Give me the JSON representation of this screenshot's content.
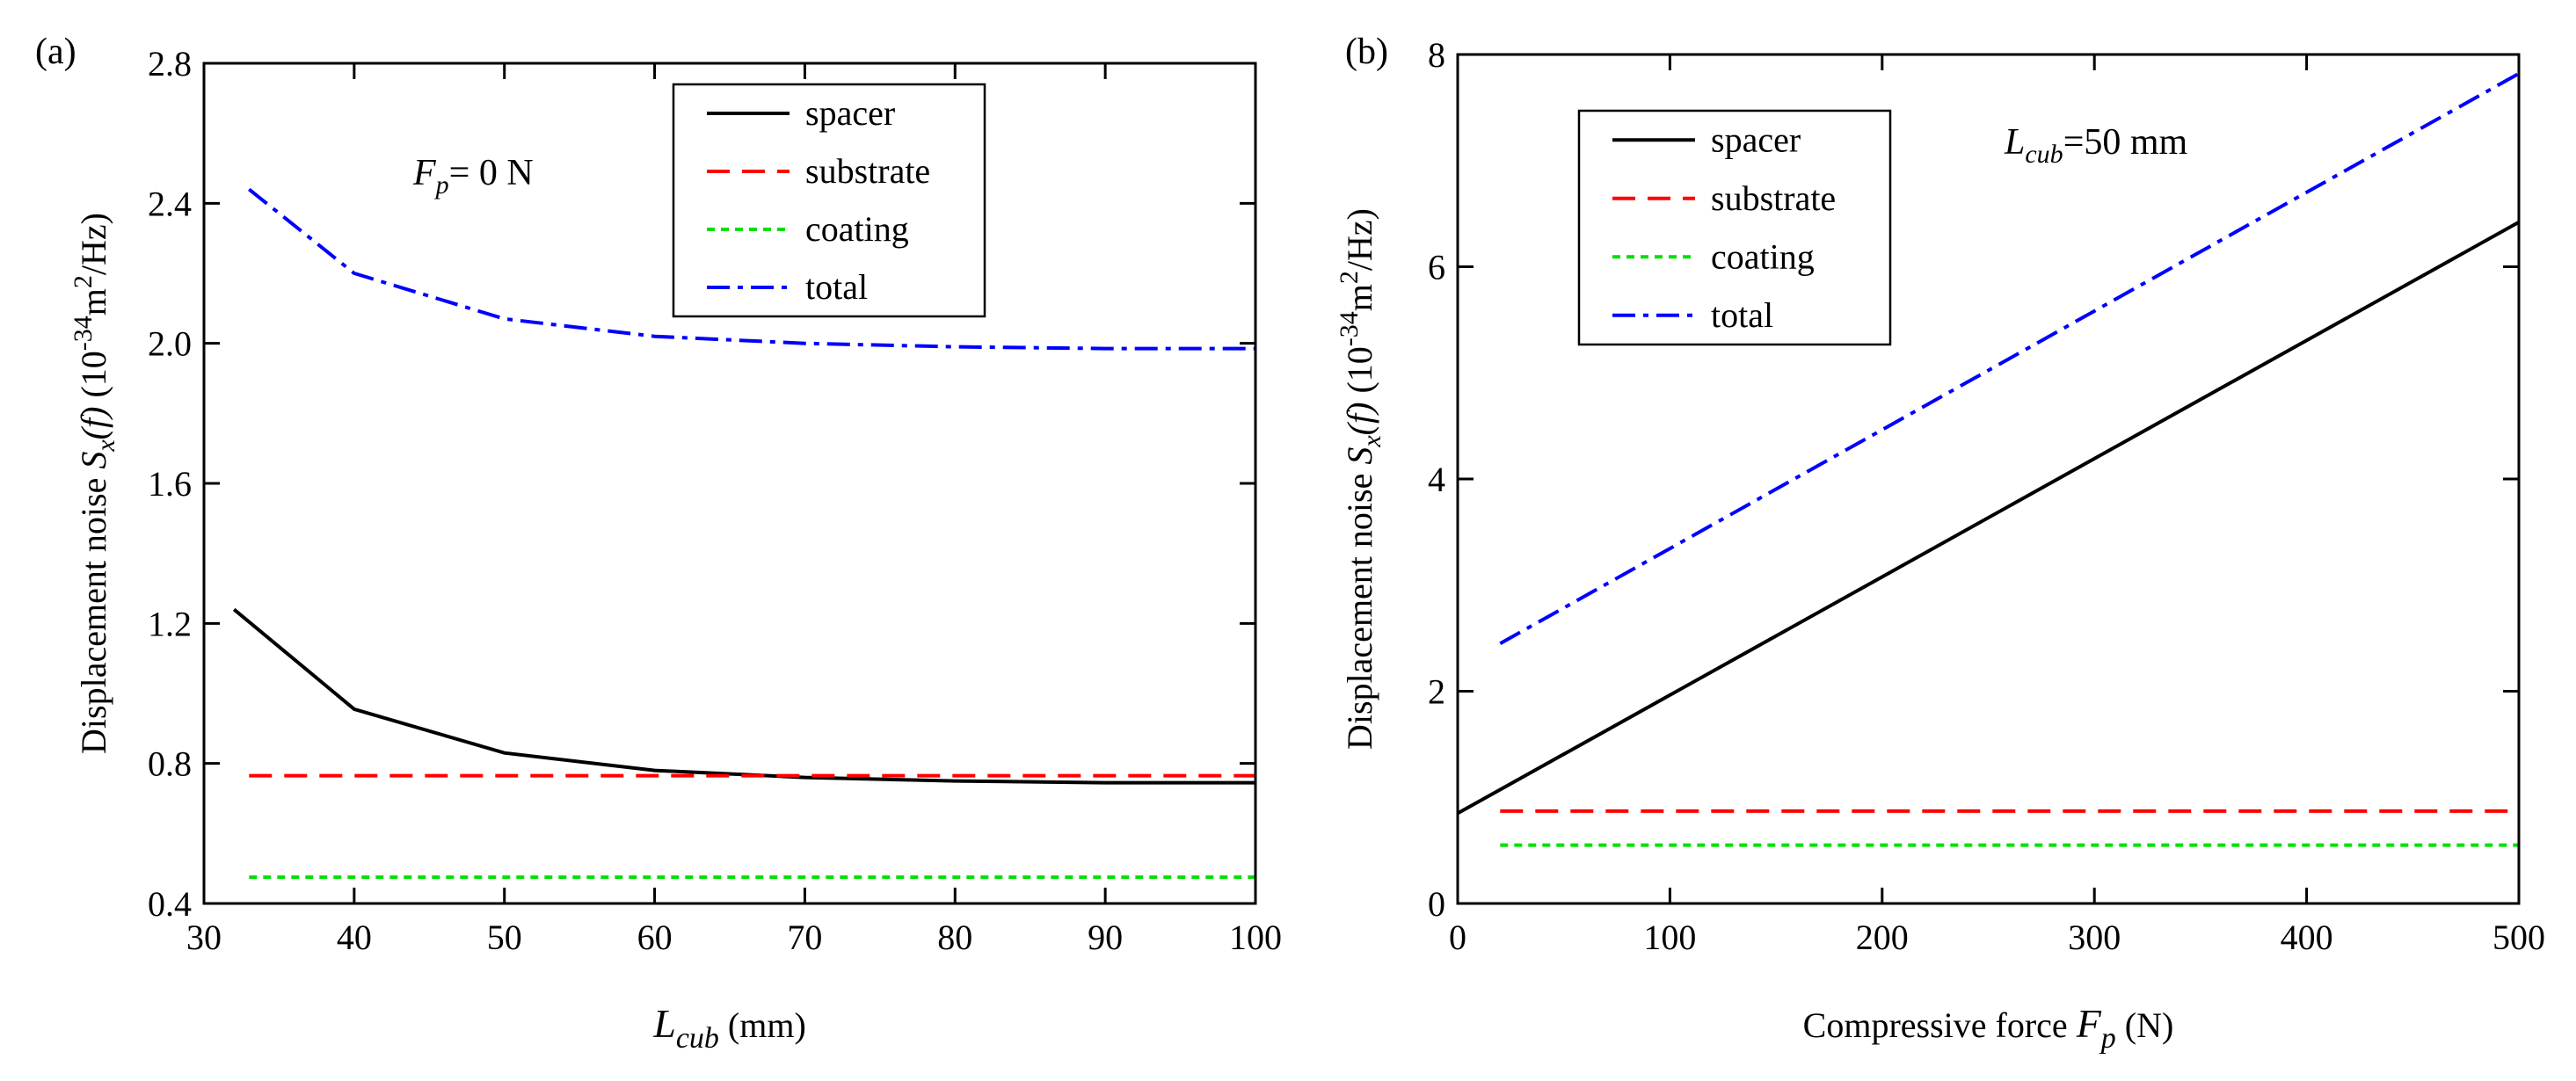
{
  "chart_data": [
    {
      "panel_label": "(a)",
      "type": "line",
      "annotation": {
        "main": "F",
        "sub": "p",
        "rest": "= 0 N"
      },
      "xlabel": {
        "main": "L",
        "sub": "cub",
        "rest": " (mm)"
      },
      "ylabel": {
        "prefix": "Displacement noise ",
        "S": "S",
        "Ssub": "x",
        "f": "(f)",
        "unit1": " (10",
        "exp1": "-34",
        "unit2": "m",
        "exp2": "2",
        "unit3": "/Hz)"
      },
      "xlim": [
        30,
        100
      ],
      "ylim": [
        0.4,
        2.8
      ],
      "xticks": [
        30,
        40,
        50,
        60,
        70,
        80,
        90,
        100
      ],
      "yticks": [
        0.4,
        0.8,
        1.2,
        1.6,
        2.0,
        2.4,
        2.8
      ],
      "ytick_labels": [
        "0.4",
        "0.8",
        "1.2",
        "1.6",
        "2.0",
        "2.4",
        "2.8"
      ],
      "legend": [
        "spacer",
        "substrate",
        "coating",
        "total"
      ],
      "series": [
        {
          "name": "spacer",
          "color": "#000000",
          "style": "solid",
          "x": [
            32,
            40,
            50,
            60,
            70,
            80,
            90,
            100
          ],
          "y": [
            1.24,
            0.955,
            0.83,
            0.78,
            0.76,
            0.75,
            0.745,
            0.745
          ]
        },
        {
          "name": "substrate",
          "color": "#ff0000",
          "style": "dash",
          "x": [
            33,
            100
          ],
          "y": [
            0.765,
            0.765
          ]
        },
        {
          "name": "coating",
          "color": "#00e000",
          "style": "dot",
          "x": [
            33,
            100
          ],
          "y": [
            0.475,
            0.475
          ]
        },
        {
          "name": "total",
          "color": "#0000ff",
          "style": "dashdot",
          "x": [
            33,
            40,
            50,
            60,
            70,
            80,
            90,
            100
          ],
          "y": [
            2.44,
            2.2,
            2.07,
            2.02,
            2.0,
            1.99,
            1.985,
            1.985
          ]
        }
      ]
    },
    {
      "panel_label": "(b)",
      "type": "line",
      "annotation": {
        "main": "L",
        "sub": "cub",
        "rest": "=50 mm"
      },
      "xlabel": {
        "prefix": "Compressive force  ",
        "main": "F",
        "sub": "p",
        "rest": " (N)"
      },
      "ylabel": {
        "prefix": "Displacement noise ",
        "S": "S",
        "Ssub": "x",
        "f": "(f)",
        "unit1": " (10",
        "exp1": "-34",
        "unit2": "m",
        "exp2": "2",
        "unit3": "/Hz)"
      },
      "xlim": [
        0,
        500
      ],
      "ylim": [
        0,
        8
      ],
      "xticks": [
        0,
        100,
        200,
        300,
        400,
        500
      ],
      "yticks": [
        0,
        2,
        4,
        6,
        8
      ],
      "ytick_labels": [
        "0",
        "2",
        "4",
        "6",
        "8"
      ],
      "legend": [
        "spacer",
        "substrate",
        "coating",
        "total"
      ],
      "series": [
        {
          "name": "spacer",
          "color": "#000000",
          "style": "solid",
          "x": [
            0,
            500
          ],
          "y": [
            0.85,
            6.42
          ]
        },
        {
          "name": "substrate",
          "color": "#ff0000",
          "style": "dash",
          "x": [
            20,
            500
          ],
          "y": [
            0.87,
            0.87
          ]
        },
        {
          "name": "coating",
          "color": "#00e000",
          "style": "dot",
          "x": [
            20,
            500
          ],
          "y": [
            0.55,
            0.55
          ]
        },
        {
          "name": "total",
          "color": "#0000ff",
          "style": "dashdot",
          "x": [
            20,
            500
          ],
          "y": [
            2.45,
            7.82
          ]
        }
      ]
    }
  ]
}
